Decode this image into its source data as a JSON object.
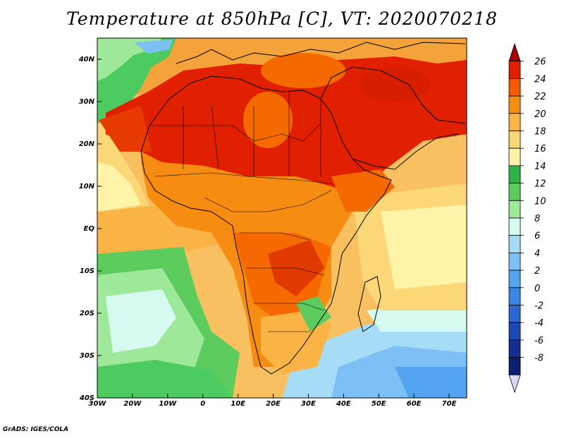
{
  "title": "Temperature at 850hPa [C], VT: 2020070218",
  "credit": "GrADS: IGES/COLA",
  "map": {
    "lon_range": [
      -30,
      75
    ],
    "lat_range": [
      -40,
      45
    ],
    "lon_ticks": [
      "30W",
      "20W",
      "10W",
      "0",
      "10E",
      "20E",
      "30E",
      "40E",
      "50E",
      "60E",
      "70E"
    ],
    "lat_ticks": [
      "40S",
      "30S",
      "20S",
      "10S",
      "EQ",
      "10N",
      "20N",
      "30N",
      "40N"
    ]
  },
  "colorbar": {
    "labels": [
      "26",
      "24",
      "22",
      "20",
      "18",
      "16",
      "14",
      "12",
      "10",
      "8",
      "6",
      "4",
      "2",
      "0",
      "-2",
      "-4",
      "-6",
      "-8"
    ],
    "colors": [
      "#a50000",
      "#e02000",
      "#f45a00",
      "#f78c12",
      "#f9b445",
      "#fcd777",
      "#fef3a6",
      "#2eb34a",
      "#5dcc5e",
      "#9ee89a",
      "#d6f9f0",
      "#a7dcf7",
      "#7cc0f5",
      "#55a4ef",
      "#3b86e4",
      "#2a66d4",
      "#1c48b8",
      "#142e96",
      "#0c1e72",
      "#dcd8f4"
    ]
  }
}
